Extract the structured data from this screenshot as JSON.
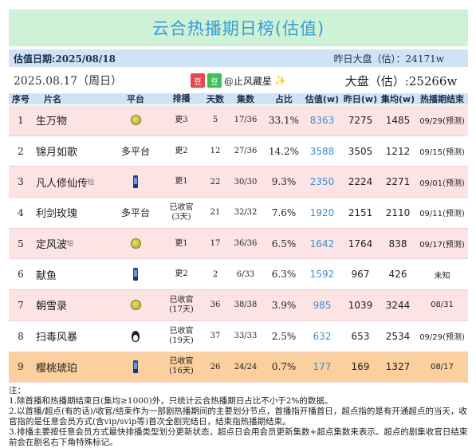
{
  "title": "云合热播期日榜(估值)",
  "estimate_date": "估值日期:2025/08/18",
  "yesterday_market": "昨日大盘（估）：24171w",
  "date_line": "2025.08.17（周日）",
  "watermark": {
    "badge1": "豆",
    "badge2": "豆",
    "text": "@止风藏星",
    "spark": "✨"
  },
  "market_line": "大盘（估）:25266w",
  "headers": {
    "no": "序号",
    "name": "片名",
    "platform": "平台",
    "schedule": "排播",
    "days": "天数",
    "episodes": "集数",
    "ratio": "占比",
    "estimate": "估值(w)",
    "yesterday": "昨日(w)",
    "avg": "集均(w)",
    "end": "热播期结束"
  },
  "rows": [
    {
      "no": "1",
      "name": "生万物",
      "tag": "",
      "platform_icon": "mango-icon",
      "platform": "",
      "schedule": "更3",
      "days": "5",
      "episodes": "17/36",
      "ratio": "33.1%",
      "estimate": "8363",
      "yesterday": "7275",
      "avg": "1485",
      "end": "09/29(预测)",
      "bg": "pink"
    },
    {
      "no": "2",
      "name": "锦月如歌",
      "tag": "",
      "platform_icon": "",
      "platform": "多平台",
      "schedule": "更2",
      "days": "12",
      "episodes": "27/36",
      "ratio": "14.2%",
      "estimate": "3588",
      "yesterday": "3505",
      "avg": "1212",
      "end": "09/15(预测)",
      "bg": "white"
    },
    {
      "no": "3",
      "name": "凡人修仙传",
      "tag": "短",
      "platform_icon": "tencent-icon",
      "platform": "",
      "schedule": "更1",
      "days": "22",
      "episodes": "30/30",
      "ratio": "9.3%",
      "estimate": "2350",
      "yesterday": "2224",
      "avg": "2271",
      "end": "09/01(预测)",
      "bg": "pink"
    },
    {
      "no": "4",
      "name": "利剑玫瑰",
      "tag": "",
      "platform_icon": "",
      "platform": "多平台",
      "schedule": "已收官\n(3天)",
      "days": "21",
      "episodes": "32/32",
      "ratio": "7.6%",
      "estimate": "1920",
      "yesterday": "2151",
      "avg": "2110",
      "end": "09/11(预测)",
      "bg": "white"
    },
    {
      "no": "5",
      "name": "定风波",
      "tag": "短",
      "platform_icon": "mango-icon",
      "platform": "",
      "schedule": "更1",
      "days": "17",
      "episodes": "36/36",
      "ratio": "6.5%",
      "estimate": "1642",
      "yesterday": "1764",
      "avg": "838",
      "end": "09/17(预测)",
      "bg": "pink"
    },
    {
      "no": "6",
      "name": "献鱼",
      "tag": "",
      "platform_icon": "tencent-icon",
      "platform": "",
      "schedule": "更2",
      "days": "2",
      "episodes": "6/33",
      "ratio": "6.3%",
      "estimate": "1592",
      "yesterday": "967",
      "avg": "426",
      "end": "未知",
      "bg": "white"
    },
    {
      "no": "7",
      "name": "朝雪录",
      "tag": "",
      "platform_icon": "mango-icon",
      "platform": "",
      "schedule": "已收官\n(17天)",
      "days": "36",
      "episodes": "38/38",
      "ratio": "3.9%",
      "estimate": "985",
      "yesterday": "1039",
      "avg": "3244",
      "end": "08/31",
      "bg": "pink"
    },
    {
      "no": "8",
      "name": "扫毒风暴",
      "tag": "",
      "platform_icon": "penguin-icon",
      "platform": "",
      "schedule": "已收官\n(19天)",
      "days": "37",
      "episodes": "33/33",
      "ratio": "2.5%",
      "estimate": "632",
      "yesterday": "653",
      "avg": "2534",
      "end": "09/29(预测)",
      "bg": "white"
    },
    {
      "no": "9",
      "name": "樱桃琥珀",
      "tag": "",
      "platform_icon": "tencent-icon",
      "platform": "",
      "schedule": "已收官\n(16天)",
      "days": "26",
      "episodes": "24/24",
      "ratio": "0.7%",
      "estimate": "177",
      "yesterday": "169",
      "avg": "1327",
      "end": "08/17",
      "bg": "orange"
    }
  ],
  "notes": [
    "注：",
    "1.除首播和热播期结束日(集均≥1000)外，只统计云合热播期日占比不小于2%的数据。",
    "2.以首播/超点(有的话)/收官/结束作为一部剧热播期间的主要划分节点，首播指开播首日，超点指的是有开通超点的当天，收官指的是任意会员方式(含vip/svip等)首次全剧完结日，结束指热播期结束。",
    "3.排播主要按任意会员方式最快排播类型划分更新状态，超点日会用会员更新集数+超点集数来表示。超点的剧集收官日结束前会在剧名右下角特殊标记。"
  ],
  "colors": {
    "title_bg": "#cdf2d6",
    "title_text": "#3a9bd6",
    "header_bg": "#cfe3f5",
    "pink_row": "#fce4e4",
    "orange_row": "#fbcf9e",
    "estimate_text": "#3b8fd0"
  }
}
